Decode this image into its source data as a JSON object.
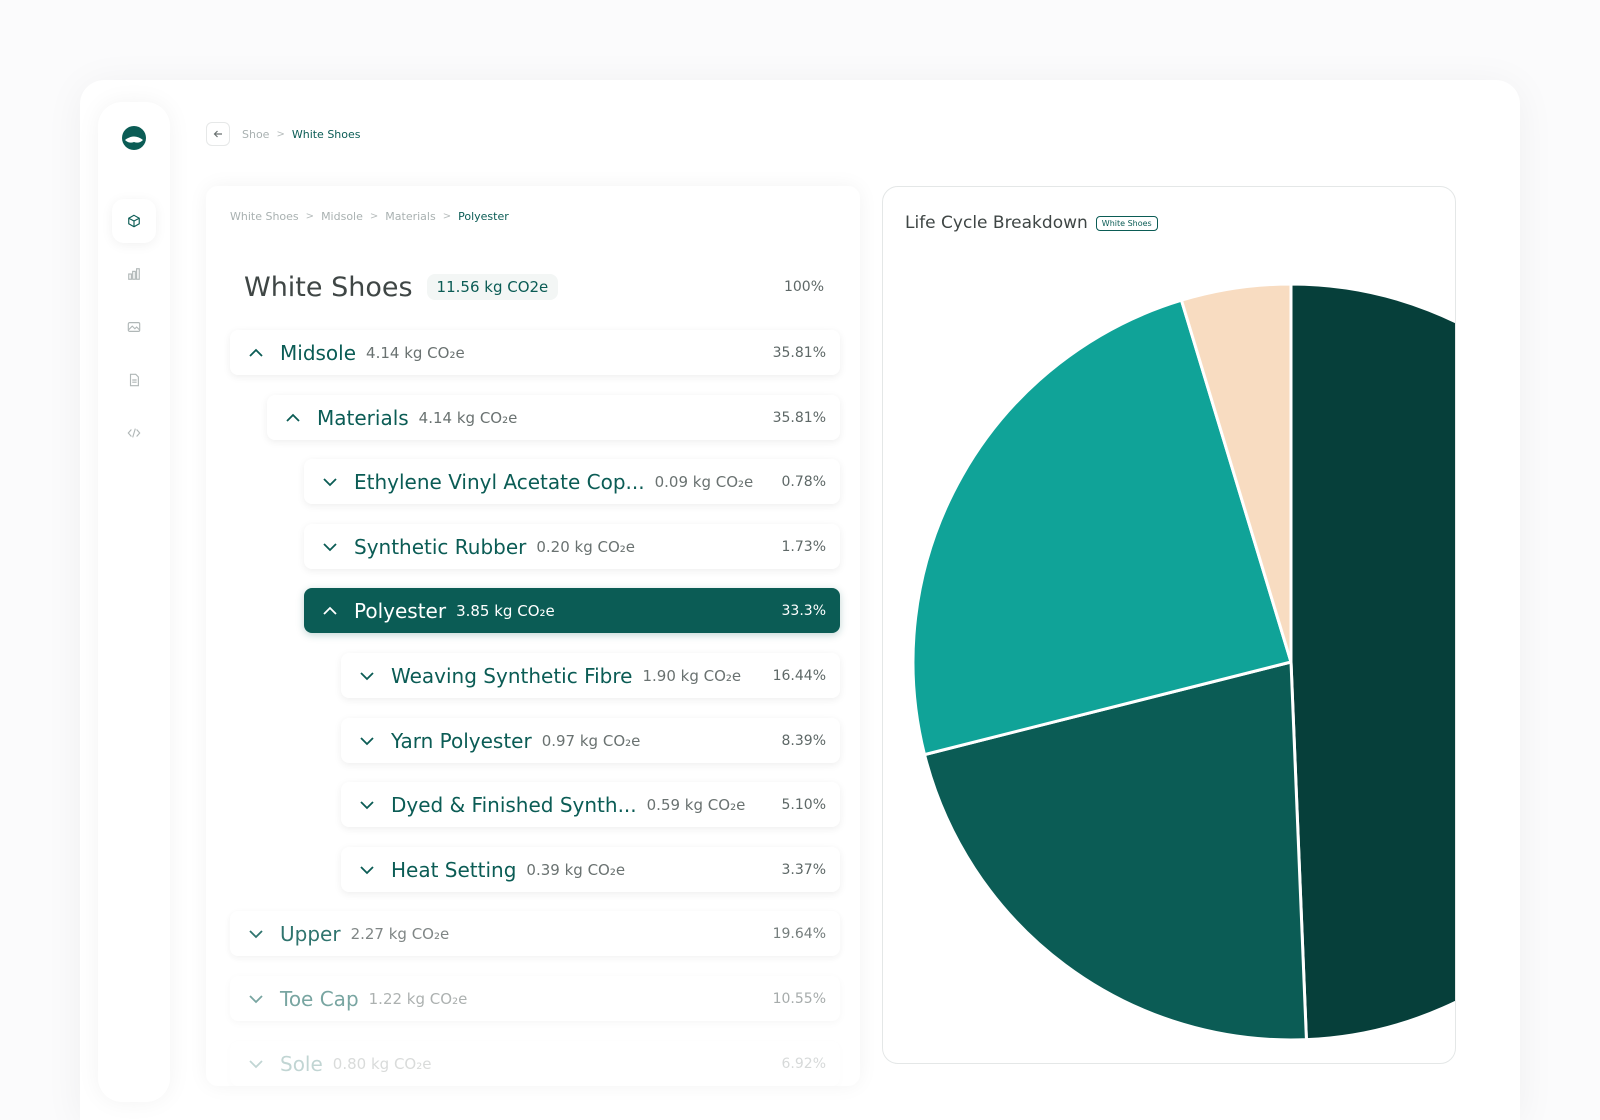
{
  "topbar": {
    "breadcrumb": [
      "Shoe",
      "White Shoes"
    ],
    "separator": ">"
  },
  "sidebar": {
    "items": [
      {
        "icon": "cube-icon",
        "active": true
      },
      {
        "icon": "bar-chart-icon",
        "active": false
      },
      {
        "icon": "image-icon",
        "active": false
      },
      {
        "icon": "document-icon",
        "active": false
      },
      {
        "icon": "code-icon",
        "active": false
      }
    ]
  },
  "tree": {
    "breadcrumb": [
      "White Shoes",
      "Midsole",
      "Materials",
      "Polyester"
    ],
    "product": {
      "title": "White Shoes",
      "total": "11.56 kg CO2e",
      "pct": "100%"
    },
    "rows": [
      {
        "label": "Midsole",
        "value": "4.14 kg CO₂e",
        "pct": "35.81%",
        "expanded": true
      },
      {
        "label": "Materials",
        "value": "4.14 kg CO₂e",
        "pct": "35.81%",
        "expanded": true
      },
      {
        "label": "Ethylene Vinyl Acetate Cop...",
        "value": "0.09 kg CO₂e",
        "pct": "0.78%",
        "expanded": false
      },
      {
        "label": "Synthetic Rubber",
        "value": "0.20 kg CO₂e",
        "pct": "1.73%",
        "expanded": false
      },
      {
        "label": "Polyester",
        "value": "3.85 kg CO₂e",
        "pct": "33.3%",
        "expanded": true,
        "selected": true
      },
      {
        "label": "Weaving Synthetic Fibre",
        "value": "1.90 kg CO₂e",
        "pct": "16.44%",
        "expanded": false
      },
      {
        "label": "Yarn Polyester",
        "value": "0.97 kg CO₂e",
        "pct": "8.39%",
        "expanded": false
      },
      {
        "label": "Dyed & Finished Synth...",
        "value": "0.59 kg CO₂e",
        "pct": "5.10%",
        "expanded": false
      },
      {
        "label": "Heat Setting",
        "value": "0.39 kg CO₂e",
        "pct": "3.37%",
        "expanded": false
      },
      {
        "label": "Upper",
        "value": "2.27 kg CO₂e",
        "pct": "19.64%",
        "expanded": false
      },
      {
        "label": "Toe Cap",
        "value": "1.22 kg CO₂e",
        "pct": "10.55%",
        "expanded": false
      },
      {
        "label": "Sole",
        "value": "0.80 kg CO₂e",
        "pct": "6.92%",
        "expanded": false
      }
    ]
  },
  "chart": {
    "title": "Life Cycle Breakdown",
    "badge": "White Shoes"
  },
  "colors": {
    "primary": "#0b5c55",
    "slice_dark": "#063f3a",
    "slice_teal": "#10a398",
    "slice_peach": "#f8dcc1"
  },
  "chart_data": {
    "type": "pie",
    "title": "Life Cycle Breakdown",
    "slices": [
      {
        "value": 49.35,
        "color": "#063f3a"
      },
      {
        "value": 21.71,
        "color": "#0b5c55"
      },
      {
        "value": 24.26,
        "color": "#10a398"
      },
      {
        "value": 4.68,
        "color": "#f8dcc1"
      }
    ]
  }
}
